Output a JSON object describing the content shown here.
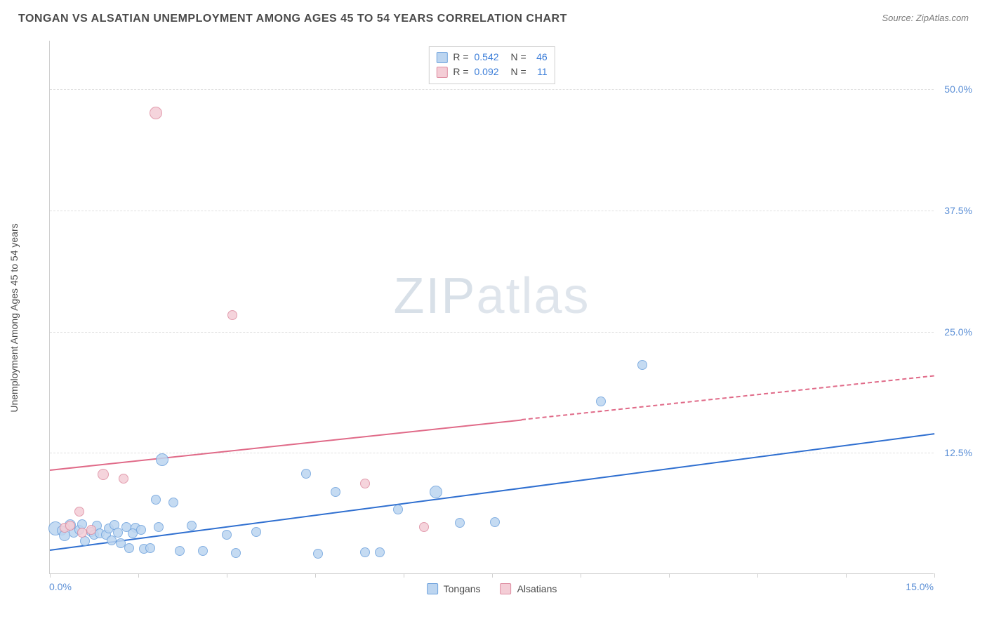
{
  "header": {
    "title": "TONGAN VS ALSATIAN UNEMPLOYMENT AMONG AGES 45 TO 54 YEARS CORRELATION CHART",
    "source": "Source: ZipAtlas.com"
  },
  "watermark": {
    "bold": "ZIP",
    "light": "atlas"
  },
  "chart": {
    "type": "scatter",
    "y_axis_title": "Unemployment Among Ages 45 to 54 years",
    "xlim": [
      0,
      15
    ],
    "ylim": [
      0,
      55
    ],
    "x_tick_labels": {
      "min": "0.0%",
      "max": "15.0%"
    },
    "x_minor_ticks": [
      0,
      1.5,
      3,
      4.5,
      6,
      7.5,
      9,
      10.5,
      12,
      13.5,
      15
    ],
    "y_gridlines": [
      {
        "y": 12.5,
        "label": "12.5%"
      },
      {
        "y": 25.0,
        "label": "25.0%"
      },
      {
        "y": 37.5,
        "label": "37.5%"
      },
      {
        "y": 50.0,
        "label": "50.0%"
      }
    ],
    "background_color": "#ffffff",
    "grid_color": "#e0e0e0",
    "axis_color": "#cfcfcf",
    "tick_label_color": "#5b8fd6",
    "series": [
      {
        "name": "Tongans",
        "fill": "#bcd5f0",
        "stroke": "#6fa3dd",
        "trend_color": "#2f6fd0",
        "r_label": "R =",
        "r_value": "0.542",
        "n_label": "N =",
        "n_value": "46",
        "trend": {
          "x0": 0,
          "y0": 2.5,
          "x1": 15,
          "y1": 14.5,
          "dashed_from": null
        },
        "points": [
          {
            "x": 0.1,
            "y": 4.6,
            "r": 10
          },
          {
            "x": 0.2,
            "y": 4.4,
            "r": 7
          },
          {
            "x": 0.25,
            "y": 3.9,
            "r": 8
          },
          {
            "x": 0.35,
            "y": 5.0,
            "r": 8
          },
          {
            "x": 0.4,
            "y": 4.2,
            "r": 7
          },
          {
            "x": 0.5,
            "y": 4.5,
            "r": 7
          },
          {
            "x": 0.55,
            "y": 5.1,
            "r": 7
          },
          {
            "x": 0.6,
            "y": 3.3,
            "r": 7
          },
          {
            "x": 0.7,
            "y": 4.3,
            "r": 7
          },
          {
            "x": 0.75,
            "y": 4.0,
            "r": 7
          },
          {
            "x": 0.8,
            "y": 4.9,
            "r": 7
          },
          {
            "x": 0.85,
            "y": 4.1,
            "r": 7
          },
          {
            "x": 0.95,
            "y": 4.0,
            "r": 7
          },
          {
            "x": 1.0,
            "y": 4.6,
            "r": 7
          },
          {
            "x": 1.05,
            "y": 3.4,
            "r": 7
          },
          {
            "x": 1.1,
            "y": 5.0,
            "r": 7
          },
          {
            "x": 1.15,
            "y": 4.2,
            "r": 7
          },
          {
            "x": 1.2,
            "y": 3.1,
            "r": 7
          },
          {
            "x": 1.3,
            "y": 4.8,
            "r": 7
          },
          {
            "x": 1.35,
            "y": 2.6,
            "r": 7
          },
          {
            "x": 1.45,
            "y": 4.7,
            "r": 7
          },
          {
            "x": 1.4,
            "y": 4.1,
            "r": 7
          },
          {
            "x": 1.55,
            "y": 4.5,
            "r": 7
          },
          {
            "x": 1.6,
            "y": 2.5,
            "r": 7
          },
          {
            "x": 1.7,
            "y": 2.6,
            "r": 7
          },
          {
            "x": 1.8,
            "y": 7.6,
            "r": 7
          },
          {
            "x": 1.85,
            "y": 4.8,
            "r": 7
          },
          {
            "x": 1.9,
            "y": 11.7,
            "r": 9
          },
          {
            "x": 2.1,
            "y": 7.3,
            "r": 7
          },
          {
            "x": 2.2,
            "y": 2.3,
            "r": 7
          },
          {
            "x": 2.4,
            "y": 4.9,
            "r": 7
          },
          {
            "x": 2.6,
            "y": 2.3,
            "r": 7
          },
          {
            "x": 3.0,
            "y": 4.0,
            "r": 7
          },
          {
            "x": 3.15,
            "y": 2.1,
            "r": 7
          },
          {
            "x": 3.5,
            "y": 4.3,
            "r": 7
          },
          {
            "x": 4.35,
            "y": 10.3,
            "r": 7
          },
          {
            "x": 4.55,
            "y": 2.0,
            "r": 7
          },
          {
            "x": 4.85,
            "y": 8.4,
            "r": 7
          },
          {
            "x": 5.35,
            "y": 2.2,
            "r": 7
          },
          {
            "x": 5.6,
            "y": 2.2,
            "r": 7
          },
          {
            "x": 5.9,
            "y": 6.6,
            "r": 7
          },
          {
            "x": 6.55,
            "y": 8.4,
            "r": 9
          },
          {
            "x": 6.95,
            "y": 5.2,
            "r": 7
          },
          {
            "x": 7.55,
            "y": 5.3,
            "r": 7
          },
          {
            "x": 9.35,
            "y": 17.7,
            "r": 7
          },
          {
            "x": 10.05,
            "y": 21.5,
            "r": 7
          }
        ]
      },
      {
        "name": "Alsatians",
        "fill": "#f4cdd6",
        "stroke": "#de8da1",
        "trend_color": "#e06a88",
        "r_label": "R =",
        "r_value": "0.092",
        "n_label": "N =",
        "n_value": "11",
        "trend": {
          "x0": 0,
          "y0": 10.8,
          "x1": 15,
          "y1": 20.5,
          "dashed_from": 8.0
        },
        "points": [
          {
            "x": 0.25,
            "y": 4.7,
            "r": 7
          },
          {
            "x": 0.35,
            "y": 4.9,
            "r": 7
          },
          {
            "x": 0.5,
            "y": 6.4,
            "r": 7
          },
          {
            "x": 0.55,
            "y": 4.2,
            "r": 7
          },
          {
            "x": 0.7,
            "y": 4.5,
            "r": 7
          },
          {
            "x": 0.9,
            "y": 10.2,
            "r": 8
          },
          {
            "x": 1.25,
            "y": 9.8,
            "r": 7
          },
          {
            "x": 1.8,
            "y": 47.5,
            "r": 9
          },
          {
            "x": 3.1,
            "y": 26.6,
            "r": 7
          },
          {
            "x": 5.35,
            "y": 9.3,
            "r": 7
          },
          {
            "x": 6.35,
            "y": 4.8,
            "r": 7
          }
        ]
      }
    ],
    "legend_bottom": [
      {
        "label": "Tongans",
        "fill": "#bcd5f0",
        "stroke": "#6fa3dd"
      },
      {
        "label": "Alsatians",
        "fill": "#f4cdd6",
        "stroke": "#de8da1"
      }
    ]
  }
}
